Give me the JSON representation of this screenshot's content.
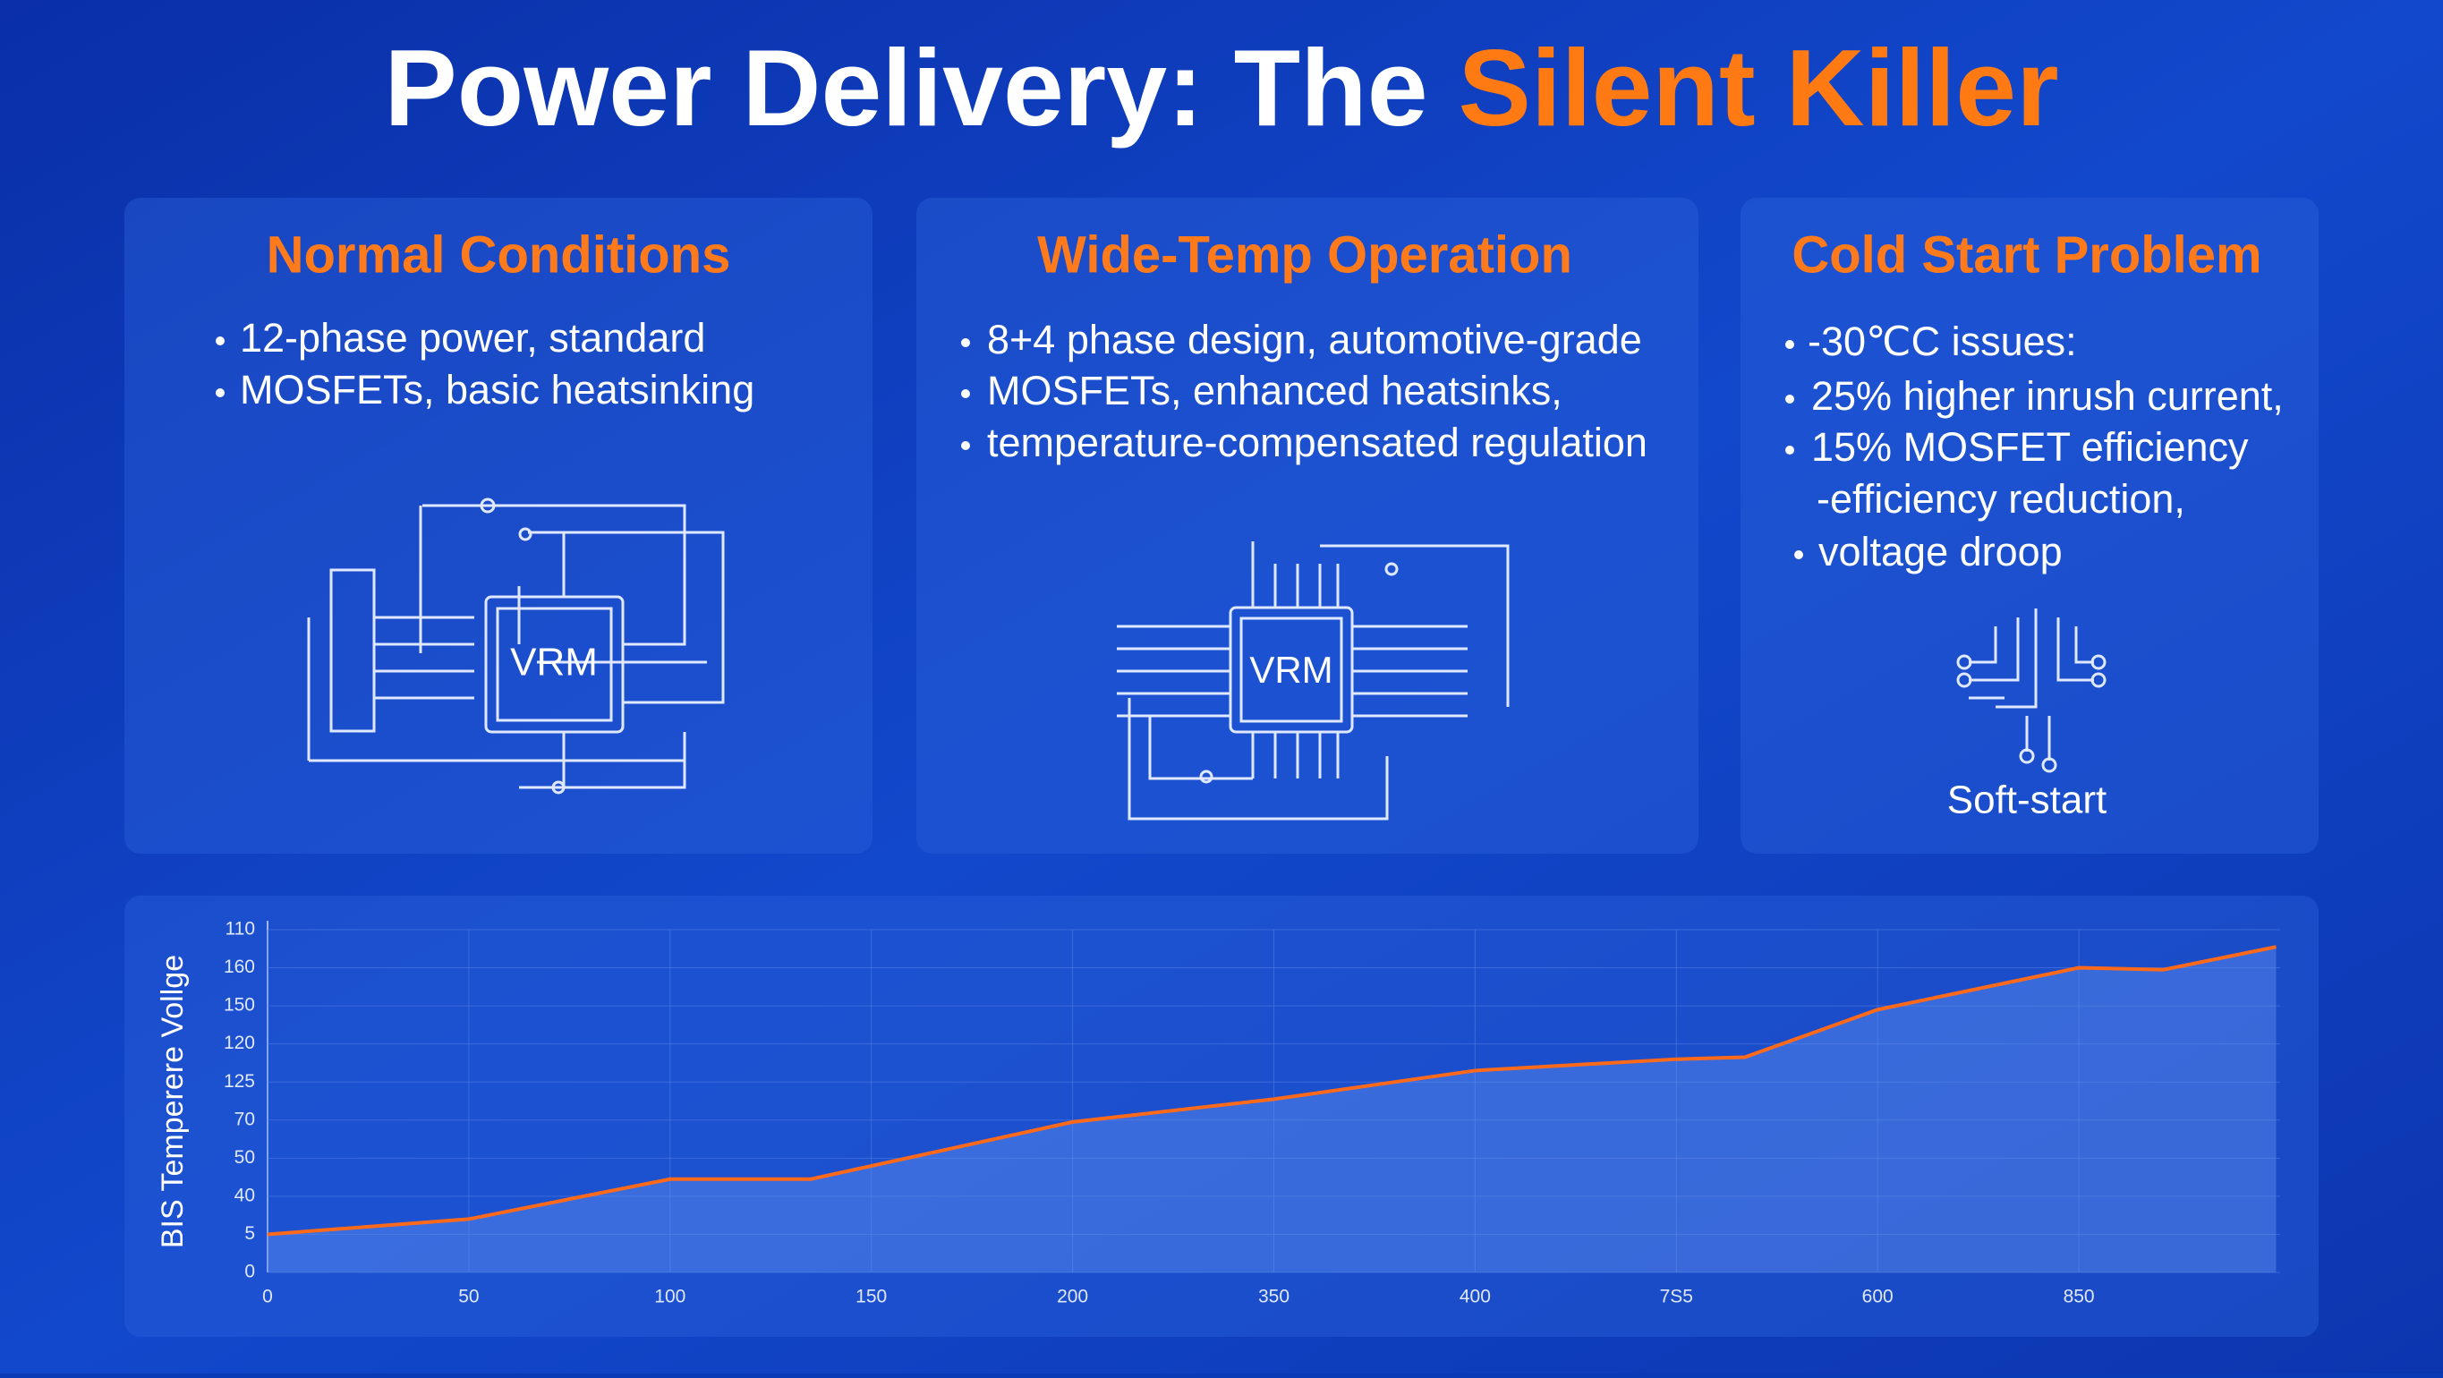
{
  "header": {
    "title": {
      "text": "Power Delivery: The ",
      "highlight": "Silent Killer"
    }
  },
  "panels": [
    {
      "heading": "Normal Conditions",
      "bullets": [
        "12-phase power, standard",
        "MOSFETs, basic heatsinking"
      ],
      "chip": "VRM"
    },
    {
      "heading": "Wide-Temp Operation",
      "bullets": [
        "8+4 phase design, automotive-grade",
        "MOSFETs, enhanced heatsinks,",
        "temperature-compensated regulation"
      ],
      "chip": "VRM"
    },
    {
      "heading": "Cold Start Problem",
      "bullets": [
        "-30℃C issues:",
        "25% higher inrush current,",
        "15% MOSFET efficiency",
        "-efficiency reduction,",
        "voltage droop"
      ],
      "icon_label": "Soft-start"
    }
  ],
  "chart_data": {
    "type": "line",
    "ylabel": "BIS Temperere Vollge",
    "color": "#ff6a1a",
    "x": [
      0,
      50,
      100,
      135,
      200,
      250,
      300,
      350,
      367,
      400,
      450,
      471,
      499
    ],
    "values": [
      20,
      28,
      49,
      49,
      79,
      91,
      106,
      112,
      113,
      138,
      160,
      159,
      171
    ],
    "xlim": [
      0,
      500
    ],
    "ylim": [
      0,
      180
    ],
    "xticks": [
      0,
      50,
      100,
      150,
      200,
      {
        "value": 250,
        "label": "350"
      },
      {
        "value": 300,
        "label": "400"
      },
      {
        "value": 350,
        "label": "7S5"
      },
      {
        "value": 400,
        "label": "600"
      },
      {
        "value": 450,
        "label": "850"
      }
    ],
    "yticks": [
      0,
      {
        "value": 20,
        "label": "5"
      },
      40,
      {
        "value": 60,
        "label": "50"
      },
      {
        "value": 80,
        "label": "70"
      },
      {
        "value": 100,
        "label": "125"
      },
      120,
      {
        "value": 140,
        "label": "150"
      },
      160,
      {
        "value": 180,
        "label": "110"
      }
    ],
    "grid": true
  }
}
